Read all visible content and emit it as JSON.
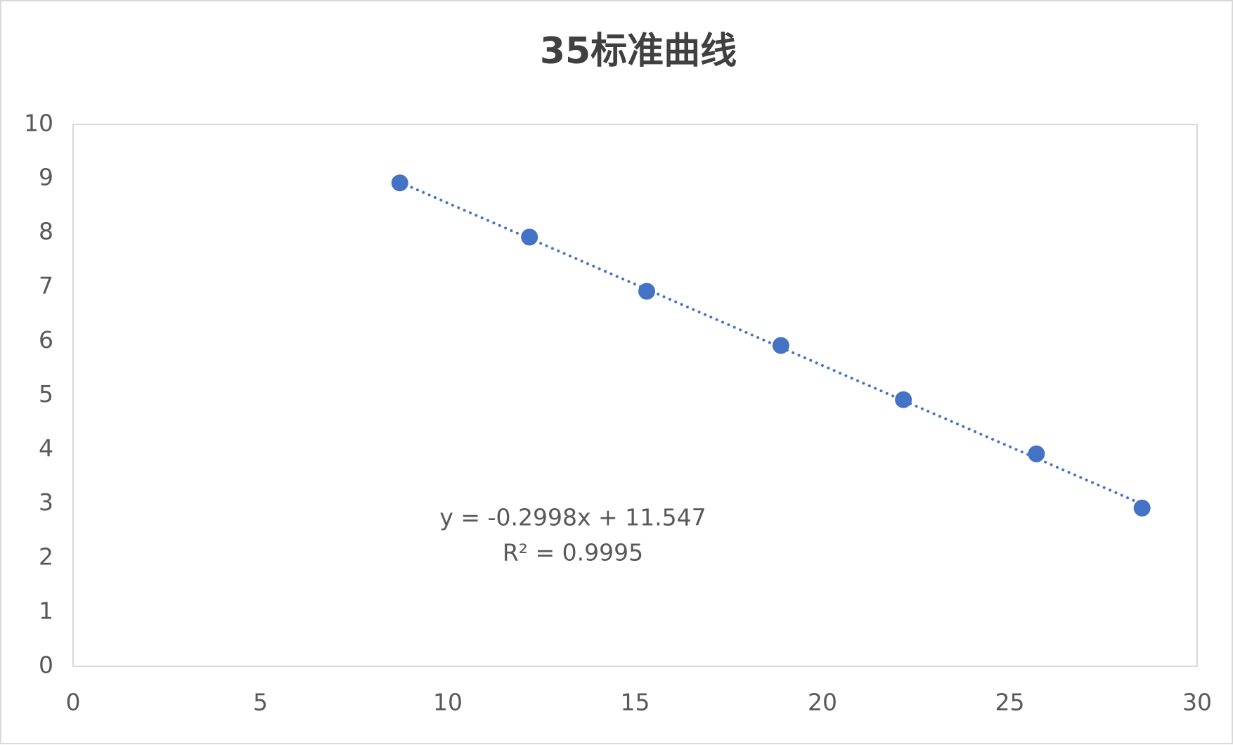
{
  "chart_data": {
    "type": "scatter",
    "title": "35标准曲线",
    "series": [
      {
        "color": "#4472c4",
        "x": [
          8.72,
          12.18,
          15.31,
          18.89,
          22.16,
          25.71,
          28.53
        ],
        "values": [
          8.92,
          7.92,
          6.92,
          5.92,
          4.92,
          3.92,
          2.92
        ]
      }
    ],
    "trendline": {
      "slope": -0.2998,
      "intercept": 11.547,
      "equation": "y = -0.2998x + 11.547",
      "r_squared": "R² = 0.9995",
      "style": "dotted"
    },
    "xlim": [
      0,
      30
    ],
    "xticks": [
      0,
      5,
      10,
      15,
      20,
      25,
      30
    ],
    "ylim": [
      0,
      10
    ],
    "yticks": [
      0,
      1,
      2,
      3,
      4,
      5,
      6,
      7,
      8,
      9,
      10
    ],
    "grid": false
  }
}
